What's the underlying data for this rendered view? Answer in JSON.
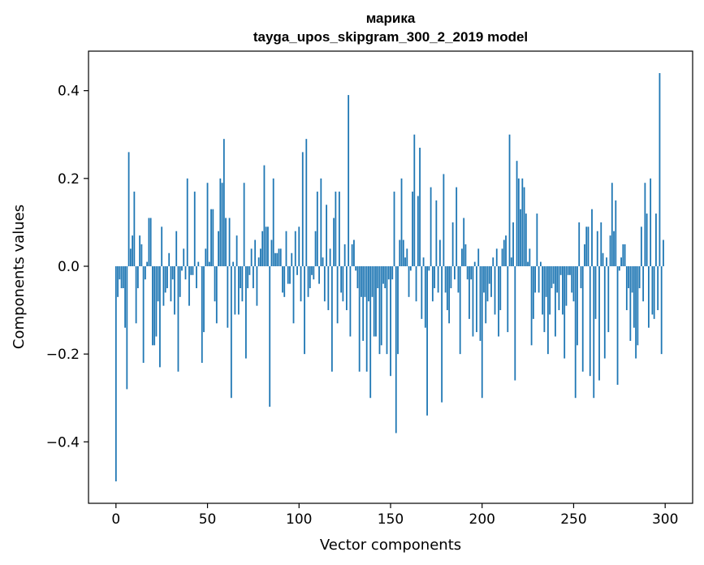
{
  "chart_data": {
    "type": "bar",
    "title": "марика",
    "subtitle": "tayga_upos_skipgram_300_2_2019 model",
    "xlabel": "Vector components",
    "ylabel": "Components values",
    "xlim": [
      -15,
      315
    ],
    "ylim": [
      -0.54,
      0.49
    ],
    "xticks": [
      0,
      50,
      100,
      150,
      200,
      250,
      300
    ],
    "xtick_labels": [
      "0",
      "50",
      "100",
      "150",
      "200",
      "250",
      "300"
    ],
    "yticks": [
      -0.4,
      -0.2,
      0.0,
      0.2,
      0.4
    ],
    "ytick_labels": [
      "−0.4",
      "−0.2",
      "0.0",
      "0.2",
      "0.4"
    ],
    "bar_color": "#1f77b4",
    "values": [
      -0.49,
      -0.07,
      -0.03,
      -0.05,
      -0.05,
      -0.14,
      -0.28,
      0.26,
      0.04,
      0.07,
      0.17,
      -0.13,
      -0.05,
      0.07,
      0.05,
      -0.22,
      -0.03,
      0.01,
      0.11,
      0.11,
      -0.18,
      -0.18,
      -0.16,
      -0.08,
      -0.23,
      0.09,
      -0.09,
      -0.06,
      -0.05,
      0.03,
      -0.08,
      -0.03,
      -0.11,
      0.08,
      -0.24,
      -0.07,
      -0.01,
      0.04,
      -0.03,
      0.2,
      -0.09,
      -0.02,
      -0.02,
      0.17,
      -0.05,
      0.01,
      0.0,
      -0.22,
      -0.15,
      0.04,
      0.19,
      0.01,
      0.13,
      0.13,
      -0.08,
      -0.13,
      0.08,
      0.2,
      0.19,
      0.29,
      0.11,
      -0.14,
      0.11,
      -0.3,
      0.01,
      -0.11,
      0.07,
      -0.11,
      -0.05,
      -0.08,
      0.19,
      -0.21,
      -0.05,
      -0.02,
      0.04,
      -0.05,
      0.06,
      -0.09,
      0.02,
      0.04,
      0.08,
      0.23,
      0.09,
      0.09,
      -0.32,
      0.06,
      0.2,
      0.03,
      0.03,
      0.04,
      0.04,
      -0.06,
      -0.07,
      0.08,
      -0.04,
      -0.04,
      0.03,
      -0.13,
      0.08,
      -0.02,
      0.09,
      -0.08,
      0.26,
      -0.2,
      0.29,
      -0.07,
      -0.05,
      -0.02,
      -0.03,
      0.08,
      0.17,
      -0.04,
      0.2,
      0.02,
      -0.08,
      0.14,
      -0.1,
      0.04,
      -0.24,
      0.11,
      0.17,
      -0.13,
      0.17,
      -0.06,
      -0.08,
      0.05,
      -0.1,
      0.39,
      -0.16,
      0.05,
      0.06,
      -0.01,
      -0.05,
      -0.24,
      -0.07,
      -0.17,
      -0.07,
      -0.24,
      -0.08,
      -0.3,
      -0.07,
      -0.16,
      -0.16,
      -0.05,
      -0.2,
      -0.18,
      -0.04,
      -0.05,
      -0.2,
      -0.03,
      -0.25,
      -0.03,
      0.17,
      -0.38,
      -0.2,
      0.06,
      0.2,
      0.06,
      0.02,
      0.04,
      -0.07,
      -0.01,
      0.17,
      0.3,
      -0.08,
      0.16,
      0.27,
      -0.12,
      0.02,
      -0.14,
      -0.34,
      -0.01,
      0.18,
      -0.08,
      -0.05,
      0.15,
      -0.06,
      0.06,
      -0.31,
      0.21,
      -0.06,
      -0.1,
      -0.13,
      -0.05,
      0.1,
      -0.03,
      0.18,
      -0.06,
      -0.2,
      0.04,
      0.11,
      0.05,
      -0.03,
      -0.12,
      -0.03,
      -0.16,
      0.01,
      -0.15,
      0.04,
      -0.17,
      -0.3,
      -0.06,
      -0.13,
      -0.08,
      -0.04,
      -0.07,
      0.02,
      -0.11,
      0.04,
      -0.16,
      -0.1,
      0.04,
      0.06,
      0.07,
      -0.15,
      0.3,
      0.02,
      0.1,
      -0.26,
      0.24,
      0.2,
      0.13,
      0.2,
      0.18,
      0.12,
      0.01,
      0.04,
      -0.18,
      -0.12,
      -0.06,
      0.12,
      -0.06,
      0.01,
      -0.11,
      -0.15,
      -0.07,
      -0.2,
      -0.11,
      -0.05,
      -0.04,
      -0.16,
      -0.06,
      -0.1,
      -0.02,
      -0.11,
      -0.21,
      -0.09,
      -0.02,
      -0.02,
      -0.06,
      -0.08,
      -0.3,
      -0.18,
      0.1,
      -0.05,
      -0.24,
      0.05,
      0.09,
      0.09,
      -0.25,
      0.13,
      -0.3,
      -0.12,
      0.08,
      -0.26,
      0.1,
      0.03,
      -0.21,
      0.02,
      -0.15,
      0.07,
      0.19,
      0.08,
      0.15,
      -0.27,
      -0.01,
      0.02,
      0.05,
      0.05,
      -0.1,
      -0.05,
      -0.17,
      -0.06,
      -0.14,
      -0.21,
      -0.18,
      -0.05,
      0.09,
      -0.08,
      0.19,
      0.12,
      -0.14,
      0.2,
      -0.11,
      -0.12,
      0.12,
      -0.1,
      0.44,
      -0.2,
      0.06
    ]
  }
}
